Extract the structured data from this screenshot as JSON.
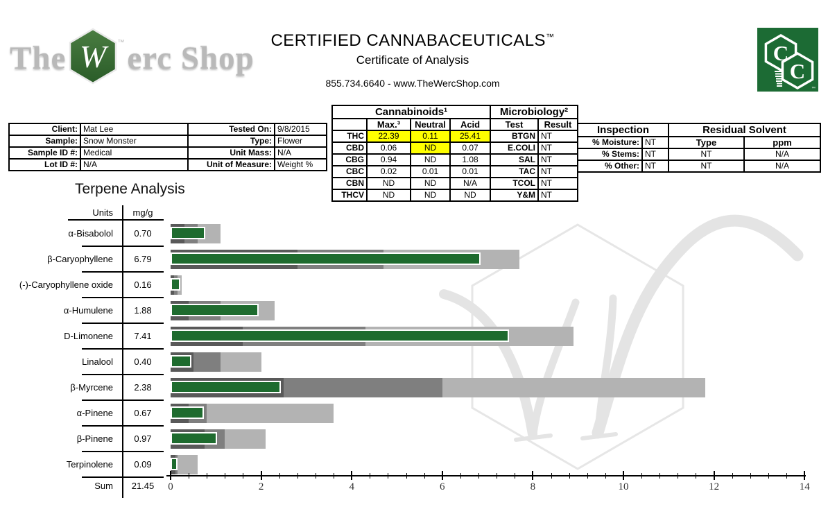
{
  "header": {
    "logo_left": {
      "the": "The",
      "w": "W",
      "rest": "erc Shop",
      "tm": "™"
    },
    "title": "CERTIFIED CANNABACEUTICALS",
    "title_tm": "™",
    "subtitle": "Certificate of Analysis",
    "contact": "855.734.6640 - www.TheWercShop.com",
    "logo_right": {
      "c1": "C",
      "c2": "C",
      "tm": "™"
    }
  },
  "sample_info": {
    "rows": [
      {
        "label1": "Client:",
        "value1": "Mat Lee",
        "label2": "Tested On:",
        "value2": "9/8/2015"
      },
      {
        "label1": "Sample:",
        "value1": "Snow Monster",
        "label2": "Type:",
        "value2": "Flower"
      },
      {
        "label1": "Sample ID #:",
        "value1": "Medical",
        "label2": "Unit Mass:",
        "value2": "N/A"
      },
      {
        "label1": "Lot ID #:",
        "value1": "N/A",
        "label2": "Unit of Measure:",
        "value2": "Weight %"
      }
    ]
  },
  "cannabinoids": {
    "title": "Cannabinoids¹",
    "columns": [
      "Max.³",
      "Neutral",
      "Acid"
    ],
    "rows": [
      {
        "name": "THC",
        "max": "22.39",
        "neutral": "0.11",
        "acid": "25.41",
        "highlight": [
          true,
          true,
          true
        ]
      },
      {
        "name": "CBD",
        "max": "0.06",
        "neutral": "ND",
        "acid": "0.07",
        "highlight": [
          false,
          true,
          false
        ]
      },
      {
        "name": "CBG",
        "max": "0.94",
        "neutral": "ND",
        "acid": "1.08"
      },
      {
        "name": "CBC",
        "max": "0.02",
        "neutral": "0.01",
        "acid": "0.01"
      },
      {
        "name": "CBN",
        "max": "ND",
        "neutral": "ND",
        "acid": "N/A"
      },
      {
        "name": "THCV",
        "max": "ND",
        "neutral": "ND",
        "acid": "ND"
      }
    ]
  },
  "microbiology": {
    "title": "Microbiology²",
    "columns": [
      "Test",
      "Result"
    ],
    "rows": [
      {
        "test": "BTGN",
        "result": "NT"
      },
      {
        "test": "E.COLI",
        "result": "NT"
      },
      {
        "test": "SAL",
        "result": "NT"
      },
      {
        "test": "TAC",
        "result": "NT"
      },
      {
        "test": "TCOL",
        "result": "NT"
      },
      {
        "test": "Y&M",
        "result": "NT"
      }
    ]
  },
  "inspection": {
    "title": "Inspection",
    "rows": [
      {
        "label": "% Moisture:",
        "value": "NT"
      },
      {
        "label": "% Stems:",
        "value": "NT"
      },
      {
        "label": "% Other:",
        "value": "NT"
      }
    ]
  },
  "residual_solvent": {
    "title": "Residual Solvent",
    "columns": [
      "Type",
      "ppm"
    ],
    "rows": [
      {
        "type": "NT",
        "ppm": "N/A"
      },
      {
        "type": "NT",
        "ppm": "N/A"
      }
    ]
  },
  "chart_data": {
    "type": "bar",
    "title": "Terpene Analysis",
    "units_header": "Units",
    "units_value": "mg/g",
    "orientation": "horizontal",
    "xlim": [
      0,
      14
    ],
    "x_tick_labels": [
      "0",
      "2",
      "4",
      "6",
      "8",
      "10",
      "12",
      "14"
    ],
    "x_minor_step": 0.4,
    "categories": [
      "α-Bisabolol",
      "β-Caryophyllene",
      "(-)-Caryophyllene oxide",
      "α-Humulene",
      "D-Limonene",
      "Linalool",
      "β-Myrcene",
      "α-Pinene",
      "β-Pinene",
      "Terpinolene"
    ],
    "value_labels": [
      "0.70",
      "6.79",
      "0.16",
      "1.88",
      "7.41",
      "0.40",
      "2.38",
      "0.67",
      "0.97",
      "0.09"
    ],
    "series": [
      {
        "name": "sample-value-mg-g",
        "values": [
          0.7,
          6.79,
          0.16,
          1.88,
          7.41,
          0.4,
          2.38,
          0.67,
          0.97,
          0.09
        ]
      },
      {
        "name": "reference-dark",
        "values": [
          0.3,
          2.8,
          0.08,
          0.4,
          1.6,
          0.5,
          2.5,
          0.4,
          0.75,
          0.11
        ]
      },
      {
        "name": "reference-medium",
        "values": [
          0.6,
          4.7,
          0.15,
          1.1,
          4.3,
          1.1,
          6.0,
          0.8,
          1.2,
          0.15
        ]
      },
      {
        "name": "reference-light",
        "values": [
          1.1,
          7.7,
          0.25,
          2.3,
          8.9,
          2.0,
          11.8,
          3.6,
          2.1,
          0.6
        ]
      }
    ],
    "sum_label": "Sum",
    "sum_value": "21.45",
    "colors": {
      "value_bar": "#1e6b2e",
      "value_bar_border": "#ffffff",
      "ref_dark": "#595959",
      "ref_medium": "#7f7f7f",
      "ref_light": "#b3b3b3",
      "highlight": "#ffff00",
      "logo_green": "#1c6b34",
      "watermark": "#e4e4e4"
    },
    "legend": "none",
    "grid": false
  }
}
